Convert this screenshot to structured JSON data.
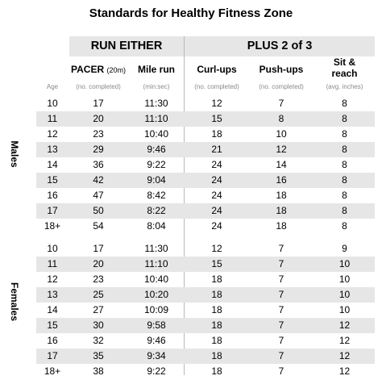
{
  "title": "Standards for Healthy Fitness Zone",
  "groups": {
    "run": "RUN EITHER",
    "plus": "PLUS 2  of  3"
  },
  "columns": [
    {
      "label": "Age",
      "sub": ""
    },
    {
      "label": "PACER",
      "label_small": "(20m)",
      "sub": "(no. completed)"
    },
    {
      "label": "Mile run",
      "sub": "(min:sec)"
    },
    {
      "label": "Curl-ups",
      "sub": "(no. completed)"
    },
    {
      "label": "Push-ups",
      "sub": "(no. completed)"
    },
    {
      "label": "Sit &",
      "label2": "reach",
      "sub": "(avg. inches)"
    }
  ],
  "sections": [
    {
      "name": "Males",
      "rows": [
        [
          "10",
          "17",
          "11:30",
          "12",
          "7",
          "8"
        ],
        [
          "11",
          "20",
          "11:10",
          "15",
          "8",
          "8"
        ],
        [
          "12",
          "23",
          "10:40",
          "18",
          "10",
          "8"
        ],
        [
          "13",
          "29",
          "9:46",
          "21",
          "12",
          "8"
        ],
        [
          "14",
          "36",
          "9:22",
          "24",
          "14",
          "8"
        ],
        [
          "15",
          "42",
          "9:04",
          "24",
          "16",
          "8"
        ],
        [
          "16",
          "47",
          "8:42",
          "24",
          "18",
          "8"
        ],
        [
          "17",
          "50",
          "8:22",
          "24",
          "18",
          "8"
        ],
        [
          "18+",
          "54",
          "8:04",
          "24",
          "18",
          "8"
        ]
      ]
    },
    {
      "name": "Females",
      "rows": [
        [
          "10",
          "17",
          "11:30",
          "12",
          "7",
          "9"
        ],
        [
          "11",
          "20",
          "11:10",
          "15",
          "7",
          "10"
        ],
        [
          "12",
          "23",
          "10:40",
          "18",
          "7",
          "10"
        ],
        [
          "13",
          "25",
          "10:20",
          "18",
          "7",
          "10"
        ],
        [
          "14",
          "27",
          "10:09",
          "18",
          "7",
          "10"
        ],
        [
          "15",
          "30",
          "9:58",
          "18",
          "7",
          "12"
        ],
        [
          "16",
          "32",
          "9:46",
          "18",
          "7",
          "12"
        ],
        [
          "17",
          "35",
          "9:34",
          "18",
          "7",
          "12"
        ],
        [
          "18+",
          "38",
          "9:22",
          "18",
          "7",
          "12"
        ]
      ]
    }
  ]
}
